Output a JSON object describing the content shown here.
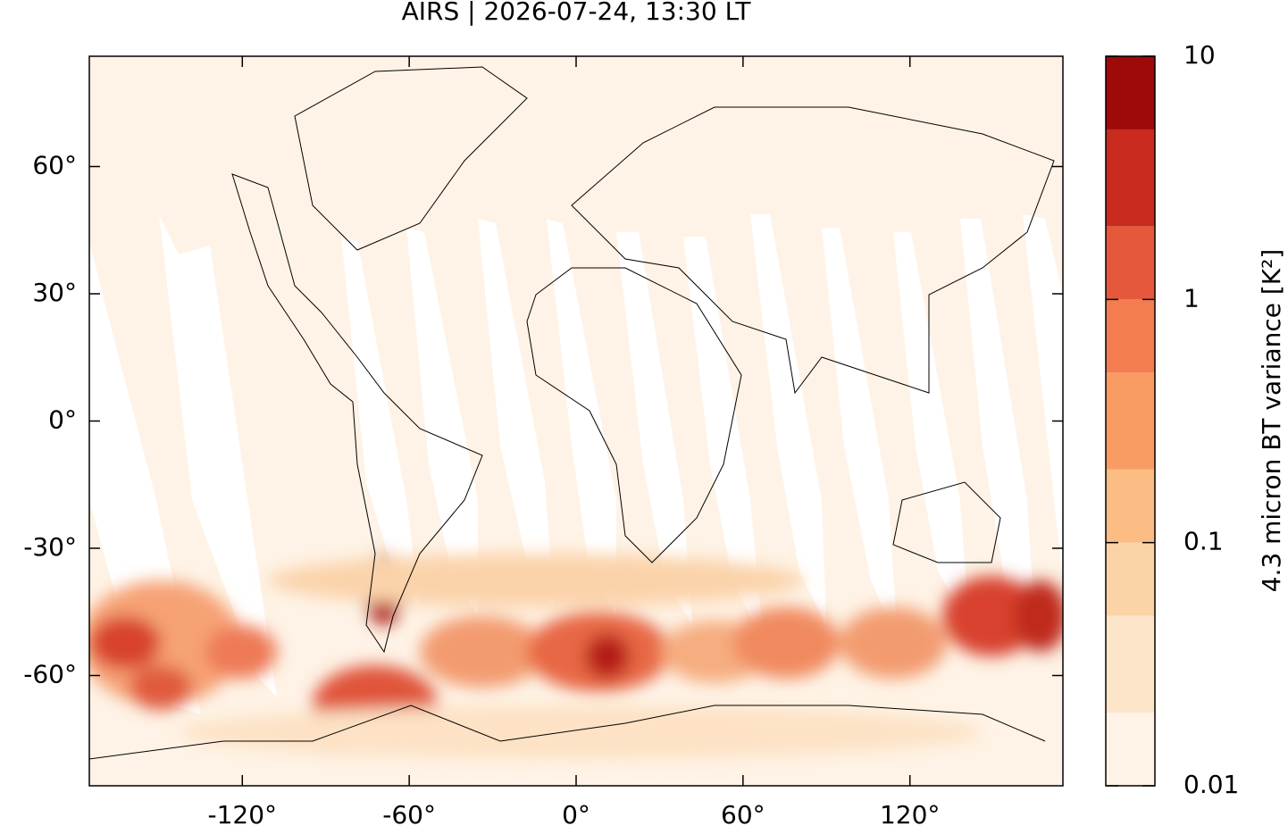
{
  "chart_data": {
    "type": "map",
    "title": "AIRS | 2026-07-24, 13:30 LT",
    "xlim": [
      -175,
      175
    ],
    "ylim": [
      -86,
      86
    ],
    "xticks": [
      {
        "value": -120,
        "label": "-120°"
      },
      {
        "value": -60,
        "label": "-60°"
      },
      {
        "value": 0,
        "label": "0°"
      },
      {
        "value": 60,
        "label": "60°"
      },
      {
        "value": 120,
        "label": "120°"
      }
    ],
    "yticks": [
      {
        "value": 60,
        "label": "60°"
      },
      {
        "value": 30,
        "label": "30°"
      },
      {
        "value": 0,
        "label": "0°"
      },
      {
        "value": -30,
        "label": "-30°"
      },
      {
        "value": -60,
        "label": "-60°"
      }
    ],
    "colorbar": {
      "label": "4.3 micron BT variance [K²]",
      "scale": "log",
      "lim": [
        0.01,
        10
      ],
      "ticks": [
        0.01,
        0.1,
        1,
        10
      ],
      "levels": [
        0.01,
        0.02,
        0.05,
        0.1,
        0.2,
        0.5,
        1,
        2,
        5,
        10
      ],
      "colors": [
        "#fef3e6",
        "#fde5ca",
        "#fcd3a6",
        "#fbbd84",
        "#f89c64",
        "#f37c50",
        "#e5583c",
        "#c92b1f",
        "#9e0a0a"
      ]
    }
  }
}
